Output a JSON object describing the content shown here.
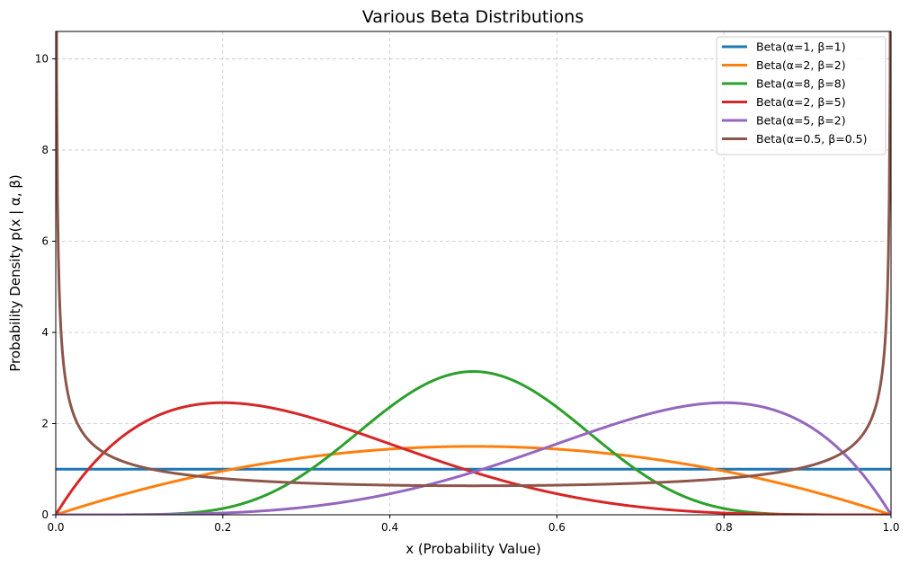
{
  "chart_data": {
    "type": "line",
    "title": "Various Beta Distributions",
    "xlabel": "x (Probability Value)",
    "ylabel": "Probability Density p(x | α, β)",
    "xlim": [
      0,
      1
    ],
    "ylim": [
      0,
      10.6
    ],
    "xticks": [
      0.0,
      0.2,
      0.4,
      0.6,
      0.8,
      1.0
    ],
    "xtick_labels": [
      "0.0",
      "0.2",
      "0.4",
      "0.6",
      "0.8",
      "1.0"
    ],
    "yticks": [
      0,
      2,
      4,
      6,
      8,
      10
    ],
    "ytick_labels": [
      "0",
      "2",
      "4",
      "6",
      "8",
      "10"
    ],
    "grid": true,
    "legend_position": "top-right",
    "series": [
      {
        "name": "Beta(α=1, β=1)",
        "alpha": 1,
        "beta": 1,
        "color": "#1f77b4"
      },
      {
        "name": "Beta(α=2, β=2)",
        "alpha": 2,
        "beta": 2,
        "color": "#ff7f0e"
      },
      {
        "name": "Beta(α=8, β=8)",
        "alpha": 8,
        "beta": 8,
        "color": "#2ca02c"
      },
      {
        "name": "Beta(α=2, β=5)",
        "alpha": 2,
        "beta": 5,
        "color": "#d62728"
      },
      {
        "name": "Beta(α=5, β=2)",
        "alpha": 5,
        "beta": 2,
        "color": "#9467bd"
      },
      {
        "name": "Beta(α=0.5, β=0.5)",
        "alpha": 0.5,
        "beta": 0.5,
        "color": "#8c564b"
      }
    ]
  }
}
